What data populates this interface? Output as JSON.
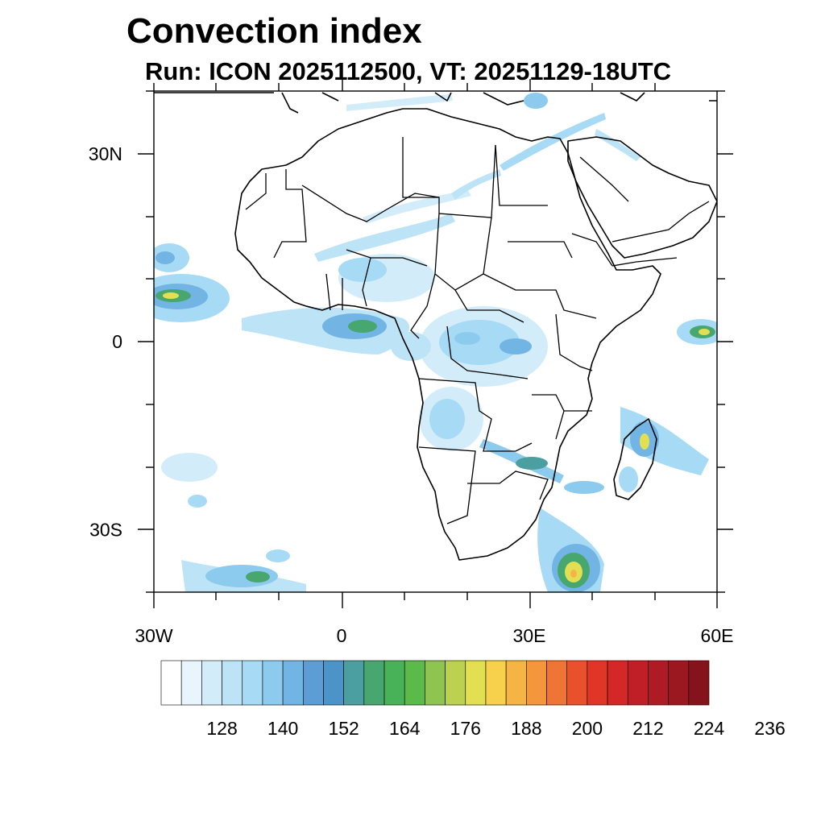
{
  "title": "Convection index",
  "subtitle": "Run: ICON 2025112500,  VT: 20251129-18UTC",
  "map": {
    "lon_range": [
      -30,
      60
    ],
    "lat_range": [
      -40,
      40
    ],
    "lat_labels": [
      {
        "lat": 30,
        "text": "30N"
      },
      {
        "lat": 0,
        "text": "0"
      },
      {
        "lat": -30,
        "text": "30S"
      }
    ],
    "lon_labels": [
      {
        "lon": -30,
        "text": "30W"
      },
      {
        "lon": 0,
        "text": "0"
      },
      {
        "lon": 30,
        "text": "30E"
      },
      {
        "lon": 60,
        "text": "60E"
      }
    ]
  },
  "colorbar": {
    "colors": [
      "#ffffff",
      "#e8f5fc",
      "#d2edf9",
      "#bde4f6",
      "#a6daf5",
      "#8ccbee",
      "#72b5e4",
      "#5c9dd6",
      "#4a94c8",
      "#4c9fa0",
      "#48a66f",
      "#47b258",
      "#5aba4a",
      "#8fc450",
      "#bcd14f",
      "#e2e052",
      "#f7d14b",
      "#f6b444",
      "#f3963c",
      "#ef7534",
      "#e8512b",
      "#df3627",
      "#d32728",
      "#c11f27",
      "#ae1b24",
      "#9b1820",
      "#85131b"
    ],
    "labels": [
      "128",
      "140",
      "152",
      "164",
      "176",
      "188",
      "200",
      "212",
      "224",
      "236"
    ]
  }
}
